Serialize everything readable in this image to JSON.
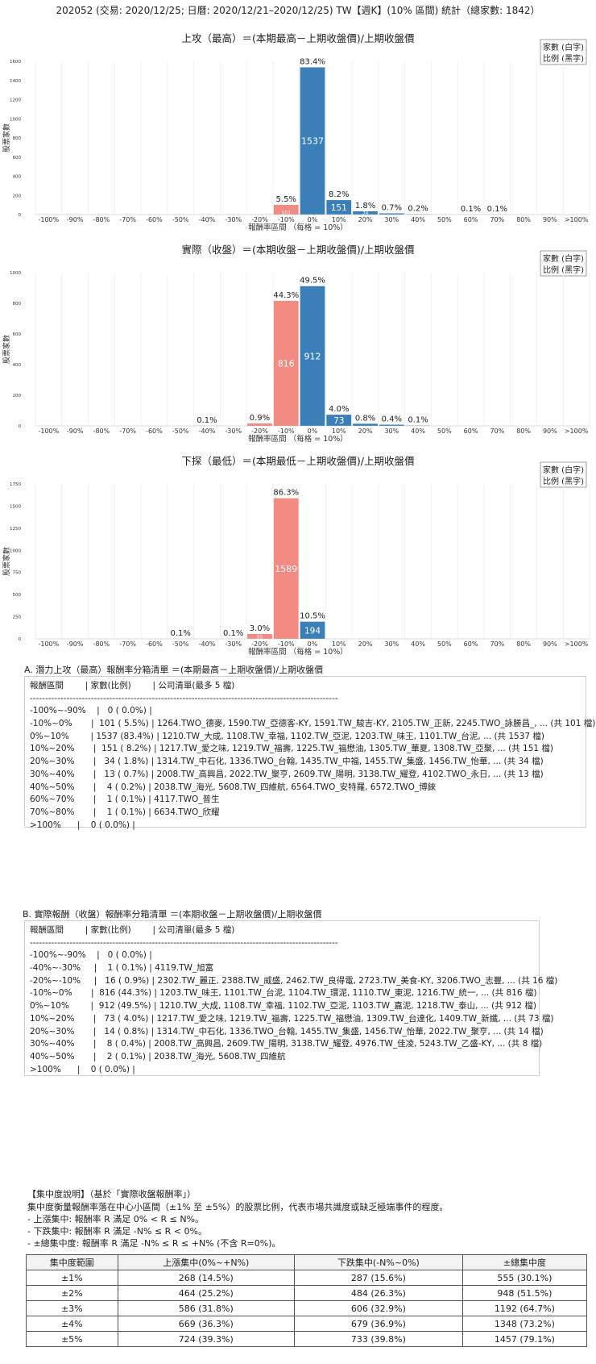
{
  "page_title": "202052 (交易: 2020/12/25; 日曆: 2020/12/21–2020/12/25) TW【週K】(10% 區間) 統計（總家數: 1842）",
  "legend_box": {
    "line1": "家數 (白字)",
    "line2": "比例 (黑字)"
  },
  "colors": {
    "positive": "#3a7fb8",
    "negative": "#f28b82",
    "grid": "#ececec"
  },
  "chart_data": [
    {
      "type": "bar",
      "title": "上攻（最高）＝(本期最高－上期收盤價)/上期收盤價",
      "xlabel": "報酬率區間 （每格 = 10%）",
      "ylabel": "股票家數",
      "categories": [
        "-100%",
        "-90%",
        "-80%",
        "-70%",
        "-60%",
        "-50%",
        "-40%",
        "-30%",
        "-20%",
        "-10%",
        "0%",
        "10%",
        "20%",
        "30%",
        "40%",
        "50%",
        "60%",
        "70%",
        "80%",
        "90%",
        ">100%"
      ],
      "values": [
        0,
        0,
        0,
        0,
        0,
        0,
        0,
        0,
        0,
        101,
        1537,
        151,
        34,
        13,
        4,
        0,
        1,
        1,
        0,
        0,
        0
      ],
      "pct_labels": [
        "",
        "",
        "",
        "",
        "",
        "",
        "",
        "",
        "",
        "5.5%",
        "83.4%",
        "8.2%",
        "1.8%",
        "0.7%",
        "0.2%",
        "",
        "0.1%",
        "0.1%",
        "",
        "",
        ""
      ],
      "ylim": [
        0,
        1600
      ],
      "yticks": [
        0,
        200,
        400,
        600,
        800,
        1000,
        1200,
        1400,
        1600
      ]
    },
    {
      "type": "bar",
      "title": "實際（收盤）＝(本期收盤－上期收盤價)/上期收盤價",
      "xlabel": "報酬率區間 （每格 = 10%）",
      "ylabel": "股票家數",
      "categories": [
        "-100%",
        "-90%",
        "-80%",
        "-70%",
        "-60%",
        "-50%",
        "-40%",
        "-30%",
        "-20%",
        "-10%",
        "0%",
        "10%",
        "20%",
        "30%",
        "40%",
        "50%",
        "60%",
        "70%",
        "80%",
        "90%",
        ">100%"
      ],
      "values": [
        0,
        0,
        0,
        0,
        0,
        0,
        1,
        0,
        16,
        816,
        912,
        73,
        14,
        8,
        2,
        0,
        0,
        0,
        0,
        0,
        0
      ],
      "pct_labels": [
        "",
        "",
        "",
        "",
        "",
        "",
        "0.1%",
        "",
        "0.9%",
        "44.3%",
        "49.5%",
        "4.0%",
        "0.8%",
        "0.4%",
        "0.1%",
        "",
        "",
        "",
        "",
        "",
        ""
      ],
      "ylim": [
        0,
        1000
      ],
      "yticks": [
        0,
        200,
        400,
        600,
        800,
        1000
      ]
    },
    {
      "type": "bar",
      "title": "下探（最低）＝(本期最低－上期收盤價)/上期收盤價",
      "xlabel": "報酬率區間 （每格 = 10%）",
      "ylabel": "股票家數",
      "categories": [
        "-100%",
        "-90%",
        "-80%",
        "-70%",
        "-60%",
        "-50%",
        "-40%",
        "-30%",
        "-20%",
        "-10%",
        "0%",
        "10%",
        "20%",
        "30%",
        "40%",
        "50%",
        "60%",
        "70%",
        "80%",
        "90%",
        ">100%"
      ],
      "values": [
        0,
        0,
        0,
        0,
        0,
        1,
        0,
        1,
        55,
        1589,
        194,
        0,
        0,
        0,
        0,
        0,
        0,
        0,
        0,
        0,
        0
      ],
      "pct_labels": [
        "",
        "",
        "",
        "",
        "",
        "0.1%",
        "",
        "0.1%",
        "3.0%",
        "86.3%",
        "10.5%",
        "",
        "",
        "",
        "",
        "",
        "",
        "",
        "",
        "",
        ""
      ],
      "ylim": [
        0,
        1750
      ],
      "yticks": [
        0,
        250,
        500,
        750,
        1000,
        1250,
        1500,
        1750
      ]
    }
  ],
  "section_a": {
    "title": "A. 潛力上攻（最高）報酬率分箱清單 ＝(本期最高－上期收盤價)/上期收盤價",
    "lines": [
      "報酬區間        | 家數(比例)        | 公司清單(最多 5 檔)",
      "-----------------------------------------------------------------------------------------------------",
      "-100%~-90%    |   0 ( 0.0%) |",
      "-10%~0%       |  101 ( 5.5%) | 1264.TWO_德麥, 1590.TW_亞德客-KY, 1591.TW_駿吉-KY, 2105.TW_正新, 2245.TWO_詠勝昌_, ... (共 101 檔)",
      "0%~10%        | 1537 (83.4%) | 1210.TW_大成, 1108.TW_幸福, 1102.TW_亞泥, 1203.TW_味王, 1101.TW_台泥, ... (共 1537 檔)",
      "10%~20%       |  151 ( 8.2%) | 1217.TW_愛之味, 1219.TW_福壽, 1225.TW_福懋油, 1305.TW_華夏, 1308.TW_亞聚, ... (共 151 檔)",
      "20%~30%       |   34 ( 1.8%) | 1314.TW_中石化, 1336.TWO_台翰, 1435.TW_中福, 1455.TW_集盛, 1456.TW_怡華, ... (共 34 檔)",
      "30%~40%       |   13 ( 0.7%) | 2008.TW_高興昌, 2022.TW_聚亨, 2609.TW_陽明, 3138.TW_耀登, 4102.TWO_永日, ... (共 13 檔)",
      "40%~50%       |    4 ( 0.2%) | 2038.TW_海光, 5608.TW_四維航, 6564.TWO_安特羅, 6572.TWO_博錸",
      "60%~70%       |    1 ( 0.1%) | 4117.TWO_普生",
      "70%~80%       |    1 ( 0.1%) | 6634.TWO_欣耀",
      ">100%      |    0 ( 0.0%) |"
    ]
  },
  "section_b": {
    "title": "B. 實際報酬（收盤）報酬率分箱清單 ＝(本期收盤－上期收盤價)/上期收盤價",
    "lines": [
      "報酬區間        | 家數(比例)        | 公司清單(最多 5 檔)",
      "-----------------------------------------------------------------------------------------------------",
      "-100%~-90%    |   0 ( 0.0%) |",
      "-40%~-30%     |    1 ( 0.1%) | 4119.TW_旭富",
      "-20%~-10%     |   16 ( 0.9%) | 2302.TW_麗正, 2388.TW_威盛, 2462.TW_良得電, 2723.TW_美食-KY, 3206.TWO_志豐, ... (共 16 檔)",
      "-10%~0%       |  816 (44.3%) | 1203.TW_味王, 1101.TW_台泥, 1104.TW_環泥, 1110.TW_東泥, 1216.TW_統一, ... (共 816 檔)",
      "0%~10%        |  912 (49.5%) | 1210.TW_大成, 1108.TW_幸福, 1102.TW_亞泥, 1103.TW_嘉泥, 1218.TW_泰山, ... (共 912 檔)",
      "10%~20%       |   73 ( 4.0%) | 1217.TW_愛之味, 1219.TW_福壽, 1225.TW_福懋油, 1309.TW_台達化, 1409.TW_新纖, ... (共 73 檔)",
      "20%~30%       |   14 ( 0.8%) | 1314.TW_中石化, 1336.TWO_台翰, 1455.TW_集盛, 1456.TW_怡華, 2022.TW_聚亨, ... (共 14 檔)",
      "30%~40%       |    8 ( 0.4%) | 2008.TW_高興昌, 2609.TW_陽明, 3138.TW_耀登, 4976.TW_佳凌, 5243.TW_乙盛-KY, ... (共 8 檔)",
      "40%~50%       |    2 ( 0.1%) | 2038.TW_海光, 5608.TW_四維航",
      ">100%      |    0 ( 0.0%) |"
    ]
  },
  "concentration": {
    "title": "【集中度說明】（基於「實際收盤報酬率」）",
    "desc": "集中度衡量報酬率落在中心小區間（±1% 至 ±5%）的股票比例，代表市場共識度或缺乏極端事件的程度。",
    "up": " - 上漲集中: 報酬率 R 滿足 0% < R ≤ N%。",
    "down": " - 下跌集中: 報酬率 R 滿足 -N% ≤ R < 0%。",
    "both": " - ±總集中度: 報酬率 R 滿足 -N% ≤ R ≤ +N% (不含 R=0%)。",
    "headers": [
      "集中度範圍",
      "上漲集中(0%~+N%)",
      "下跌集中(-N%~0%)",
      "±總集中度"
    ],
    "rows": [
      [
        "±1%",
        "268 (14.5%)",
        "287 (15.6%)",
        "555 (30.1%)"
      ],
      [
        "±2%",
        "464 (25.2%)",
        "484 (26.3%)",
        "948 (51.5%)"
      ],
      [
        "±3%",
        "586 (31.8%)",
        "606 (32.9%)",
        "1192 (64.7%)"
      ],
      [
        "±4%",
        "669 (36.3%)",
        "679 (36.9%)",
        "1348 (73.2%)"
      ],
      [
        "±5%",
        "724 (39.3%)",
        "733 (39.8%)",
        "1457 (79.1%)"
      ]
    ]
  }
}
